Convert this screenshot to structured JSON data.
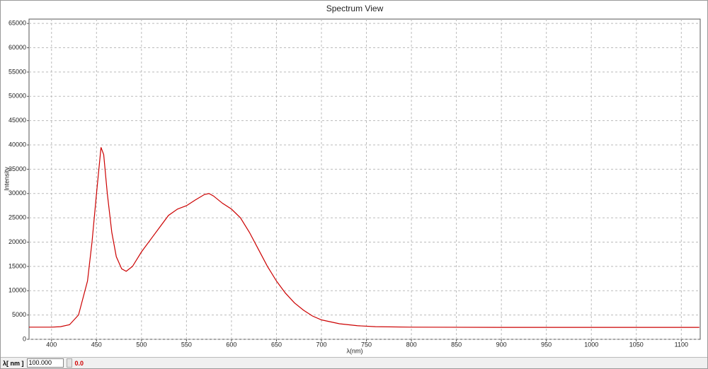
{
  "chart_data": {
    "type": "line",
    "title": "Spectrum View",
    "x_label": "λ(nm)",
    "y_label": "Intensity",
    "x": [
      375,
      400,
      410,
      420,
      430,
      440,
      445,
      450,
      455,
      458,
      462,
      467,
      472,
      478,
      483,
      490,
      500,
      510,
      520,
      530,
      540,
      550,
      560,
      570,
      575,
      580,
      590,
      600,
      610,
      620,
      630,
      640,
      650,
      660,
      670,
      680,
      690,
      700,
      720,
      740,
      760,
      800,
      900,
      1000,
      1100,
      1120
    ],
    "values": [
      2500,
      2500,
      2600,
      3000,
      5000,
      12000,
      20000,
      30000,
      39500,
      38000,
      30000,
      22000,
      17000,
      14500,
      14000,
      15000,
      18000,
      20500,
      23000,
      25500,
      26800,
      27500,
      28700,
      29800,
      30000,
      29500,
      28000,
      26800,
      25000,
      22000,
      18500,
      15000,
      12000,
      9500,
      7500,
      6000,
      4800,
      4000,
      3200,
      2800,
      2600,
      2500,
      2450,
      2450,
      2450,
      2450
    ],
    "color": "#cc0000",
    "xlim": [
      375,
      1121
    ],
    "xticks": [
      400,
      450,
      500,
      550,
      600,
      650,
      700,
      750,
      800,
      850,
      900,
      950,
      1000,
      1050,
      1100
    ],
    "ylim": [
      0,
      65900
    ],
    "yticks": [
      0,
      5000,
      10000,
      15000,
      20000,
      25000,
      30000,
      35000,
      40000,
      45000,
      50000,
      55000,
      60000,
      65000
    ],
    "grid": true
  },
  "toolbar": {
    "label": "λ[ nm ]",
    "value": "100.000",
    "readout": "0.0"
  }
}
